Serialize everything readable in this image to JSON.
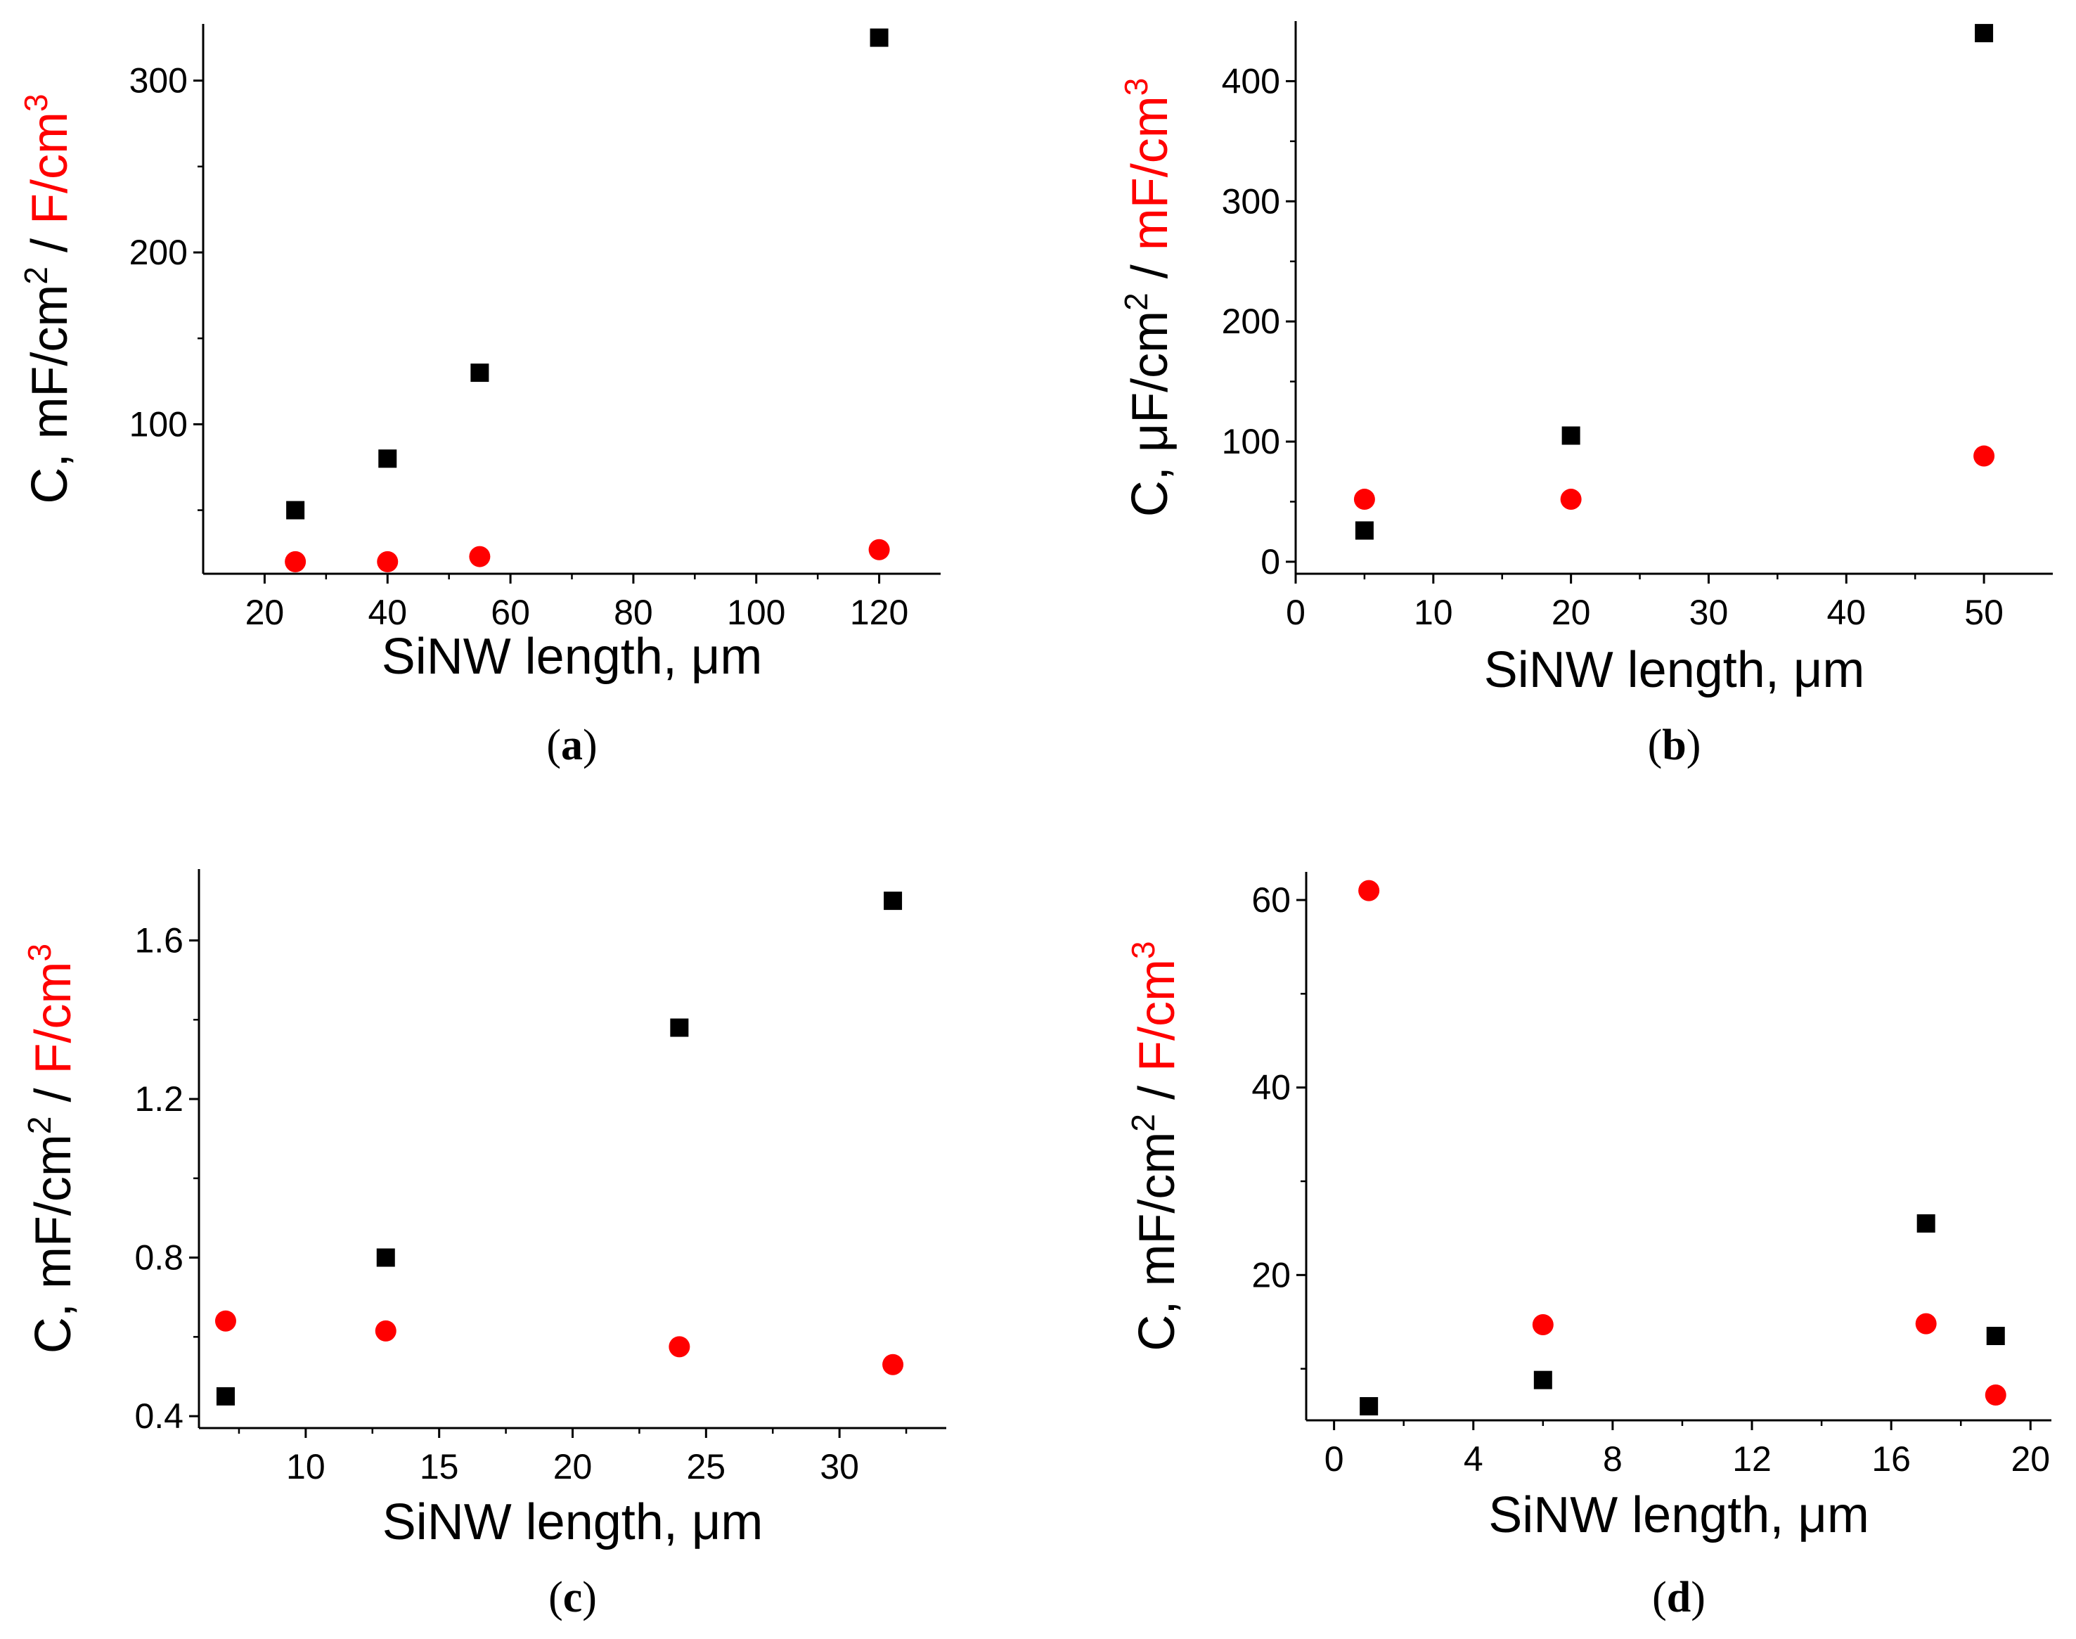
{
  "chart_data": [
    {
      "type": "scatter",
      "panel": "a",
      "caption_open": "(",
      "caption_letter": "a",
      "caption_close": ")",
      "xlabel": "SiNW length, μm",
      "ylabel_prefix": "C, mF/cm",
      "ylabel_prefix_sup": "2",
      "ylabel_sep": " / ",
      "ylabel_suffix": "F/cm",
      "ylabel_suffix_sup": "3",
      "xlim": [
        10,
        130
      ],
      "ylim": [
        13,
        333
      ],
      "xticks": [
        20,
        40,
        60,
        80,
        100,
        120
      ],
      "yticks": [
        100,
        200,
        300
      ],
      "series": [
        {
          "name": "mF/cm2",
          "marker": "square",
          "color": "#000000",
          "x": [
            25,
            40,
            55,
            120
          ],
          "y": [
            50,
            80,
            130,
            325
          ]
        },
        {
          "name": "F/cm3",
          "marker": "circle",
          "color": "#ff0000",
          "x": [
            25,
            40,
            55,
            120
          ],
          "y": [
            20,
            20,
            23,
            27
          ]
        }
      ]
    },
    {
      "type": "scatter",
      "panel": "b",
      "caption_open": "(",
      "caption_letter": "b",
      "caption_close": ")",
      "xlabel": "SiNW length, μm",
      "ylabel_prefix": "C, μF/cm",
      "ylabel_prefix_sup": "2",
      "ylabel_sep": " / ",
      "ylabel_suffix": "mF/cm",
      "ylabel_suffix_sup": "3",
      "xlim": [
        0,
        55
      ],
      "ylim": [
        -10,
        450
      ],
      "xticks": [
        0,
        10,
        20,
        30,
        40,
        50
      ],
      "yticks": [
        0,
        100,
        200,
        300,
        400
      ],
      "series": [
        {
          "name": "μF/cm2",
          "marker": "square",
          "color": "#000000",
          "x": [
            5,
            20,
            50
          ],
          "y": [
            26,
            105,
            440
          ]
        },
        {
          "name": "mF/cm3",
          "marker": "circle",
          "color": "#ff0000",
          "x": [
            5,
            20,
            50
          ],
          "y": [
            52,
            52,
            88
          ]
        }
      ]
    },
    {
      "type": "scatter",
      "panel": "c",
      "caption_open": "(",
      "caption_letter": "c",
      "caption_close": ")",
      "xlabel": "SiNW length, μm",
      "ylabel_prefix": "C, mF/cm",
      "ylabel_prefix_sup": "2",
      "ylabel_sep": " / ",
      "ylabel_suffix": "F/cm",
      "ylabel_suffix_sup": "3",
      "xlim": [
        6,
        34
      ],
      "ylim": [
        0.37,
        1.78
      ],
      "xticks": [
        10,
        15,
        20,
        25,
        30
      ],
      "yticks": [
        0.4,
        0.8,
        1.2,
        1.6
      ],
      "series": [
        {
          "name": "mF/cm2",
          "marker": "square",
          "color": "#000000",
          "x": [
            7,
            13,
            24,
            32
          ],
          "y": [
            0.45,
            0.8,
            1.38,
            1.7
          ]
        },
        {
          "name": "F/cm3",
          "marker": "circle",
          "color": "#ff0000",
          "x": [
            7,
            13,
            24,
            32
          ],
          "y": [
            0.64,
            0.615,
            0.575,
            0.53
          ]
        }
      ]
    },
    {
      "type": "scatter",
      "panel": "d",
      "caption_open": "(",
      "caption_letter": "d",
      "caption_close": ")",
      "xlabel": "SiNW length, μm",
      "ylabel_prefix": "C, mF/cm",
      "ylabel_prefix_sup": "2",
      "ylabel_sep": " / ",
      "ylabel_suffix": "F/cm",
      "ylabel_suffix_sup": "3",
      "xlim": [
        -0.8,
        20.6
      ],
      "ylim": [
        4.5,
        63
      ],
      "xticks": [
        0,
        4,
        8,
        12,
        16,
        20
      ],
      "yticks": [
        20,
        40,
        60
      ],
      "series": [
        {
          "name": "mF/cm2",
          "marker": "square",
          "color": "#000000",
          "x": [
            1,
            6,
            17,
            19
          ],
          "y": [
            6,
            8.8,
            25.5,
            13.5
          ]
        },
        {
          "name": "F/cm3",
          "marker": "circle",
          "color": "#ff0000",
          "x": [
            1,
            6,
            17,
            19
          ],
          "y": [
            61,
            14.7,
            14.8,
            7.2
          ]
        }
      ]
    }
  ],
  "colors": {
    "axis": "#000000",
    "label_accent": "#ff0000"
  }
}
